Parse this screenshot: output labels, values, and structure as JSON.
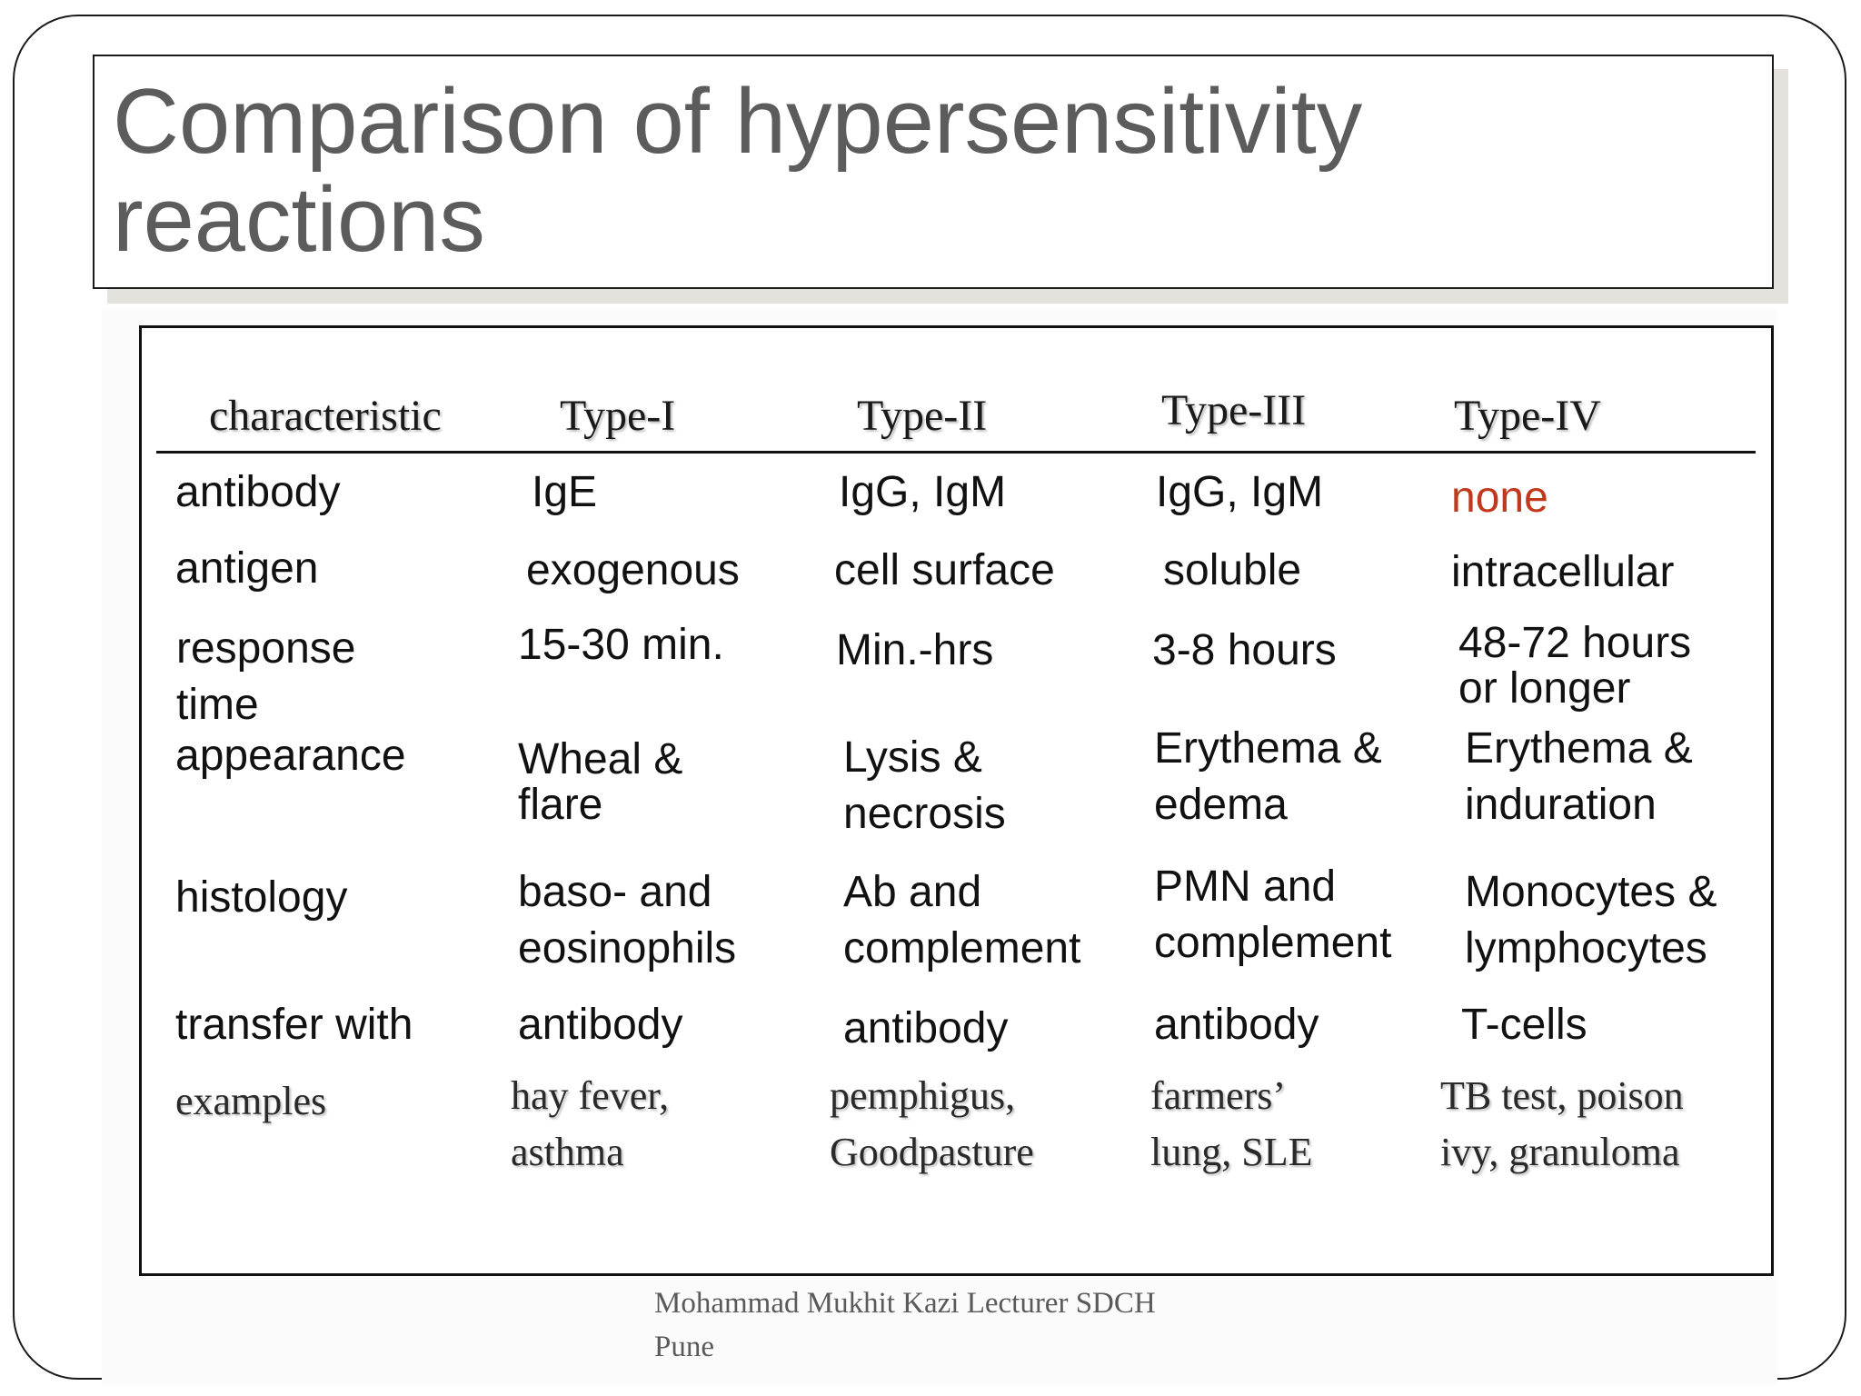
{
  "slide": {
    "title": "Comparison of hypersensitivity\nreactions",
    "footer": "Mohammad Mukhit Kazi Lecturer SDCH\nPune"
  },
  "table": {
    "headers": [
      "characteristic",
      "Type-I",
      "Type-II",
      "Type-III",
      "Type-IV"
    ],
    "rows": [
      {
        "label": "antibody",
        "cells": [
          "IgE",
          "IgG, IgM",
          "IgG, IgM",
          "none"
        ]
      },
      {
        "label": "antigen",
        "cells": [
          "exogenous",
          "cell surface",
          "soluble",
          "intracellular"
        ]
      },
      {
        "label": "response\n   time",
        "cells": [
          "15-30 min.",
          "Min.-hrs",
          "3-8 hours",
          "48-72 hours\nor longer"
        ]
      },
      {
        "label": "appearance",
        "cells": [
          "Wheal &\nflare",
          "Lysis &\nnecrosis",
          "Erythema &\nedema",
          "Erythema &\ninduration"
        ]
      },
      {
        "label": "histology",
        "cells": [
          "baso- and\neosinophils",
          "Ab and\ncomplement",
          "PMN and\ncomplement",
          "Monocytes &\nlymphocytes"
        ]
      },
      {
        "label": "transfer with",
        "cells": [
          "antibody",
          "antibody",
          "antibody",
          "T-cells"
        ]
      },
      {
        "label": "examples",
        "cells": [
          "hay fever,\nasthma",
          "pemphigus,\nGoodpasture",
          "farmers’\nlung, SLE",
          "TB test, poison\nivy, granuloma"
        ]
      }
    ],
    "highlight_color": "#c0391b"
  }
}
